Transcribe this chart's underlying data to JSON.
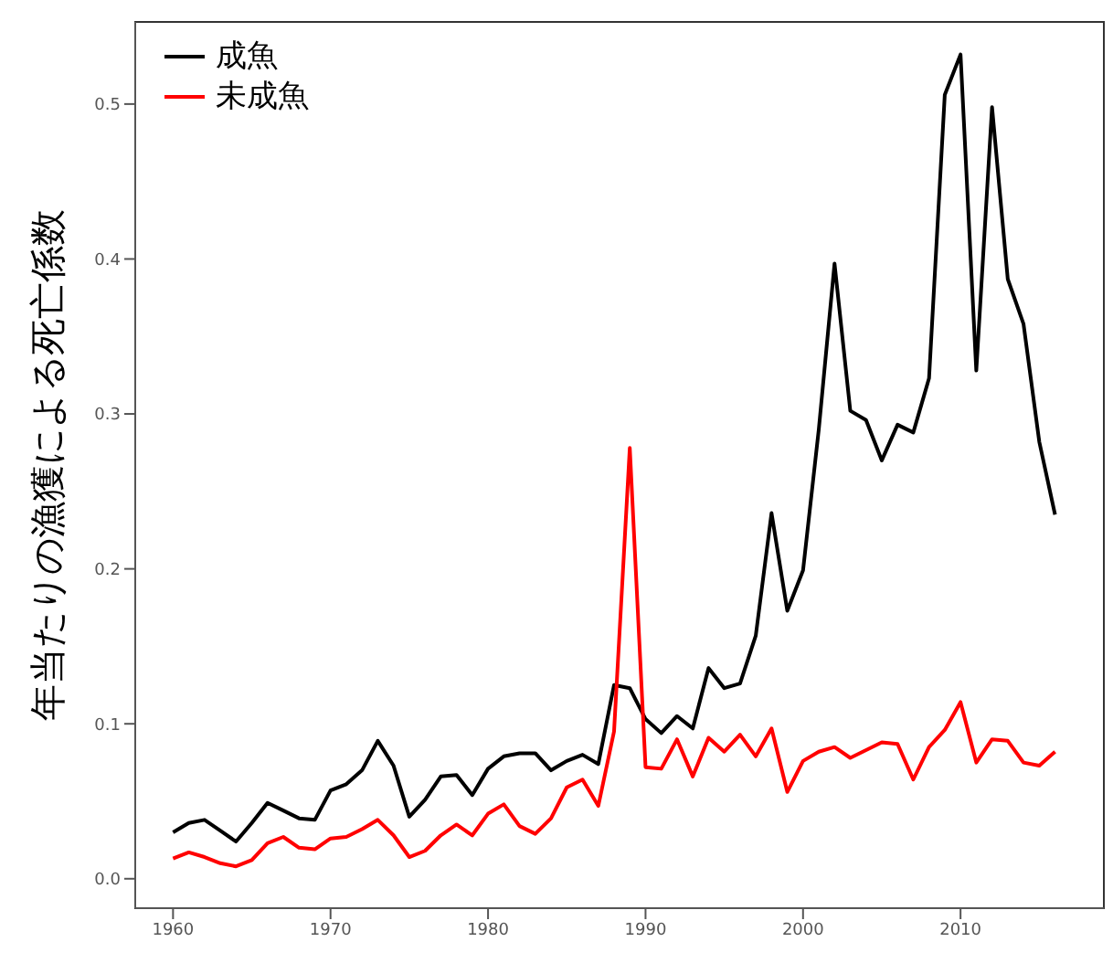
{
  "chart_data": {
    "type": "line",
    "ylabel": "年当たりの漁獲による死亡係数",
    "x": [
      1960,
      1961,
      1962,
      1963,
      1964,
      1965,
      1966,
      1967,
      1968,
      1969,
      1970,
      1971,
      1972,
      1973,
      1974,
      1975,
      1976,
      1977,
      1978,
      1979,
      1980,
      1981,
      1982,
      1983,
      1984,
      1985,
      1986,
      1987,
      1988,
      1989,
      1990,
      1991,
      1992,
      1993,
      1994,
      1995,
      1996,
      1997,
      1998,
      1999,
      2000,
      2001,
      2002,
      2003,
      2004,
      2005,
      2006,
      2007,
      2008,
      2009,
      2010,
      2011,
      2012,
      2013,
      2014,
      2015,
      2016
    ],
    "series": [
      {
        "name": "成魚",
        "color": "#000000",
        "values": [
          0.03,
          0.036,
          0.038,
          0.031,
          0.024,
          0.036,
          0.049,
          0.044,
          0.039,
          0.038,
          0.057,
          0.061,
          0.07,
          0.089,
          0.073,
          0.04,
          0.051,
          0.066,
          0.067,
          0.054,
          0.071,
          0.079,
          0.081,
          0.081,
          0.07,
          0.076,
          0.08,
          0.074,
          0.125,
          0.123,
          0.103,
          0.094,
          0.105,
          0.097,
          0.136,
          0.123,
          0.126,
          0.157,
          0.236,
          0.173,
          0.199,
          0.29,
          0.397,
          0.302,
          0.296,
          0.27,
          0.293,
          0.288,
          0.323,
          0.506,
          0.532,
          0.328,
          0.498,
          0.387,
          0.358,
          0.282,
          0.235
        ]
      },
      {
        "name": "未成魚",
        "color": "#ff0000",
        "values": [
          0.013,
          0.017,
          0.014,
          0.01,
          0.008,
          0.012,
          0.023,
          0.027,
          0.02,
          0.019,
          0.026,
          0.027,
          0.032,
          0.038,
          0.028,
          0.014,
          0.018,
          0.028,
          0.035,
          0.028,
          0.042,
          0.048,
          0.034,
          0.029,
          0.039,
          0.059,
          0.064,
          0.047,
          0.095,
          0.278,
          0.072,
          0.071,
          0.09,
          0.066,
          0.091,
          0.082,
          0.093,
          0.079,
          0.097,
          0.056,
          0.076,
          0.082,
          0.085,
          0.078,
          0.083,
          0.088,
          0.087,
          0.064,
          0.085,
          0.096,
          0.114,
          0.075,
          0.09,
          0.089,
          0.075,
          0.073,
          0.082
        ]
      }
    ],
    "xlim": [
      1957.6,
      2019.1
    ],
    "xticks": [
      1960,
      1970,
      1980,
      1990,
      2000,
      2010
    ],
    "ylim": [
      -0.019,
      0.553
    ],
    "yticks": [
      {
        "value": 0,
        "label": "0.0"
      },
      {
        "value": 0.1,
        "label": "0.1"
      },
      {
        "value": 0.2,
        "label": "0.2"
      },
      {
        "value": 0.3,
        "label": "0.3"
      },
      {
        "value": 0.4,
        "label": "0.4"
      },
      {
        "value": 0.5,
        "label": "0.5"
      }
    ],
    "legend": "top left",
    "grid": false,
    "marker": "none",
    "line_style": "solid"
  }
}
